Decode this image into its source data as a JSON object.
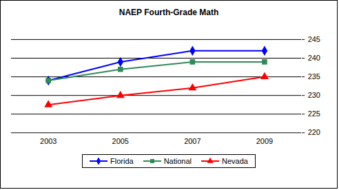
{
  "chart_data": {
    "type": "line",
    "title": "NAEP Fourth-Grade Math",
    "categories": [
      "2003",
      "2005",
      "2007",
      "2009"
    ],
    "series": [
      {
        "name": "Florida",
        "color": "#0000ff",
        "marker": "diamond",
        "values": [
          234,
          239,
          242,
          242
        ]
      },
      {
        "name": "National",
        "color": "#2e8b57",
        "marker": "square",
        "values": [
          234,
          237,
          239,
          239
        ]
      },
      {
        "name": "Nevada",
        "color": "#ff0000",
        "marker": "triangle",
        "values": [
          227.5,
          230,
          232,
          235
        ]
      }
    ],
    "ylim": [
      220,
      245
    ],
    "yticks": [
      220,
      225,
      230,
      235,
      240,
      245
    ],
    "grid": true,
    "legend": "bottom"
  }
}
